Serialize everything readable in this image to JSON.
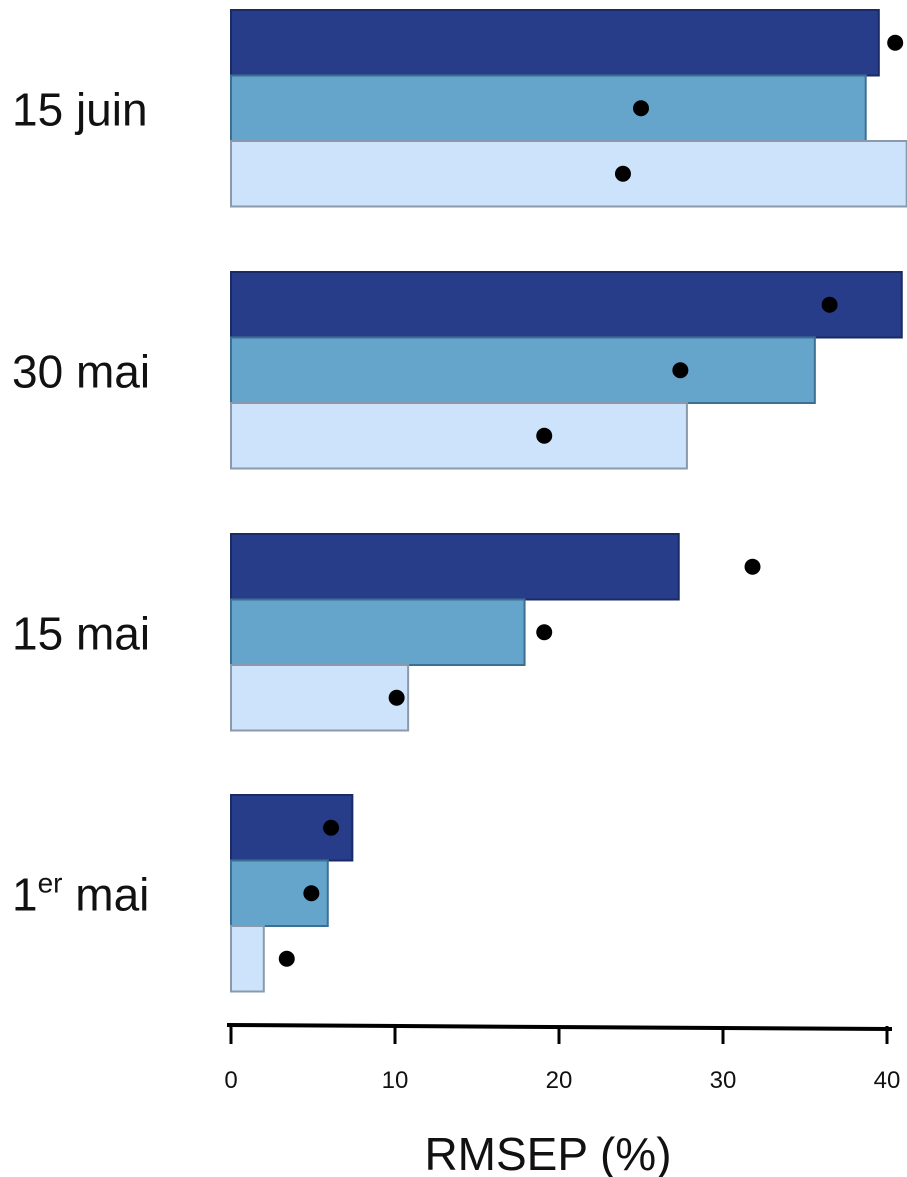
{
  "chart_data": {
    "type": "bar",
    "orientation": "horizontal",
    "categories": [
      {
        "main": "15 juin",
        "sup": "",
        "rest": ""
      },
      {
        "main": "30 mai",
        "sup": "",
        "rest": ""
      },
      {
        "main": "15 mai",
        "sup": "",
        "rest": ""
      },
      {
        "main": "1",
        "sup": "er",
        "rest": " mai"
      }
    ],
    "series": [
      {
        "color": "#283d8a",
        "stroke": "#1a2a66",
        "values": [
          39.5,
          40.9,
          27.3,
          7.4
        ],
        "points": [
          40.5,
          36.5,
          31.8,
          6.1
        ]
      },
      {
        "color": "#66a5cb",
        "stroke": "#3d6f93",
        "values": [
          38.7,
          35.6,
          17.9,
          5.9
        ],
        "points": [
          25.0,
          27.4,
          19.1,
          4.9
        ]
      },
      {
        "color": "#cce3fb",
        "stroke": "#8a9aaa",
        "values": [
          41.2,
          27.8,
          10.8,
          2.0
        ],
        "points": [
          23.9,
          19.1,
          10.1,
          3.4
        ]
      }
    ],
    "xticks": [
      0,
      10,
      20,
      30,
      40
    ],
    "xlim": [
      0,
      40
    ],
    "xlabel": "RMSEP (%)",
    "ylabel": "",
    "title": "",
    "grid": false,
    "legend": "none"
  }
}
